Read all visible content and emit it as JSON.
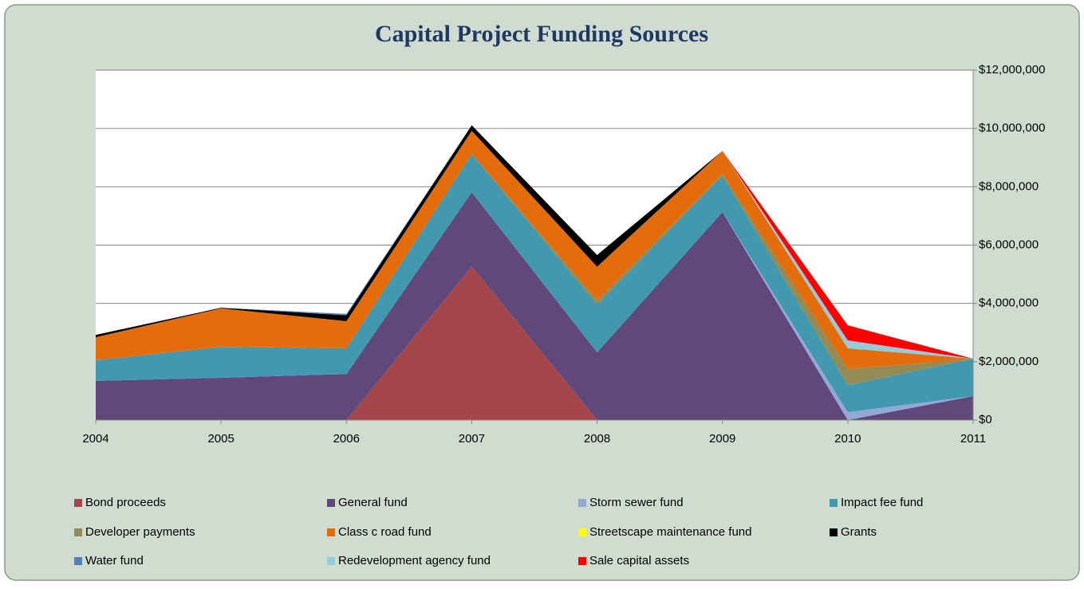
{
  "chart_data": {
    "type": "stacked_area",
    "title": "Capital Project Funding Sources",
    "x": [
      2004,
      2005,
      2006,
      2007,
      2008,
      2009,
      2010,
      2011
    ],
    "xlim": [
      2004,
      2011
    ],
    "xticks": [
      2004,
      2005,
      2006,
      2007,
      2008,
      2009,
      2010,
      2011
    ],
    "ylim": [
      0,
      12000000
    ],
    "yticks": [
      {
        "value": 0,
        "label": "$0"
      },
      {
        "value": 2000000,
        "label": "$2,000,000"
      },
      {
        "value": 4000000,
        "label": "$4,000,000"
      },
      {
        "value": 6000000,
        "label": "$6,000,000"
      },
      {
        "value": 8000000,
        "label": "$8,000,000"
      },
      {
        "value": 10000000,
        "label": "$10,000,000"
      },
      {
        "value": 12000000,
        "label": "$12,000,000"
      }
    ],
    "y_axis_side": "right",
    "grid": true,
    "legend": "bottom",
    "series": [
      {
        "name": "Bond proceeds",
        "color": "#a5474a",
        "values": [
          0,
          0,
          0,
          5270000,
          0,
          0,
          0,
          0
        ]
      },
      {
        "name": "General fund",
        "color": "#60497a",
        "values": [
          1340000,
          1450000,
          1580000,
          2540000,
          2320000,
          7130000,
          0,
          820000
        ]
      },
      {
        "name": "Storm sewer fund",
        "color": "#94a8d8",
        "values": [
          0,
          0,
          0,
          0,
          0,
          0,
          270000,
          0
        ]
      },
      {
        "name": "Impact fee fund",
        "color": "#4198af",
        "values": [
          710000,
          1060000,
          880000,
          1320000,
          1640000,
          1260000,
          930000,
          1280000
        ]
      },
      {
        "name": "Developer payments",
        "color": "#948a54",
        "values": [
          0,
          0,
          0,
          0,
          150000,
          50000,
          550000,
          0
        ]
      },
      {
        "name": "Class c road fund",
        "color": "#e46c0a",
        "values": [
          790000,
          1320000,
          930000,
          790000,
          1150000,
          790000,
          710000,
          0
        ]
      },
      {
        "name": "Streetscape maintenance fund",
        "color": "#ffff00",
        "values": [
          0,
          0,
          0,
          0,
          0,
          0,
          0,
          0
        ]
      },
      {
        "name": "Grants",
        "color": "#000000",
        "values": [
          80000,
          20000,
          200000,
          190000,
          400000,
          0,
          0,
          0
        ]
      },
      {
        "name": "Water fund",
        "color": "#4f81bd",
        "values": [
          0,
          0,
          50000,
          0,
          0,
          0,
          0,
          0
        ]
      },
      {
        "name": "Redevelopment agency fund",
        "color": "#93cddd",
        "values": [
          0,
          0,
          0,
          0,
          0,
          0,
          270000,
          0
        ]
      },
      {
        "name": "Sale capital assets",
        "color": "#ff0000",
        "values": [
          0,
          0,
          0,
          0,
          0,
          0,
          520000,
          0
        ]
      }
    ]
  }
}
